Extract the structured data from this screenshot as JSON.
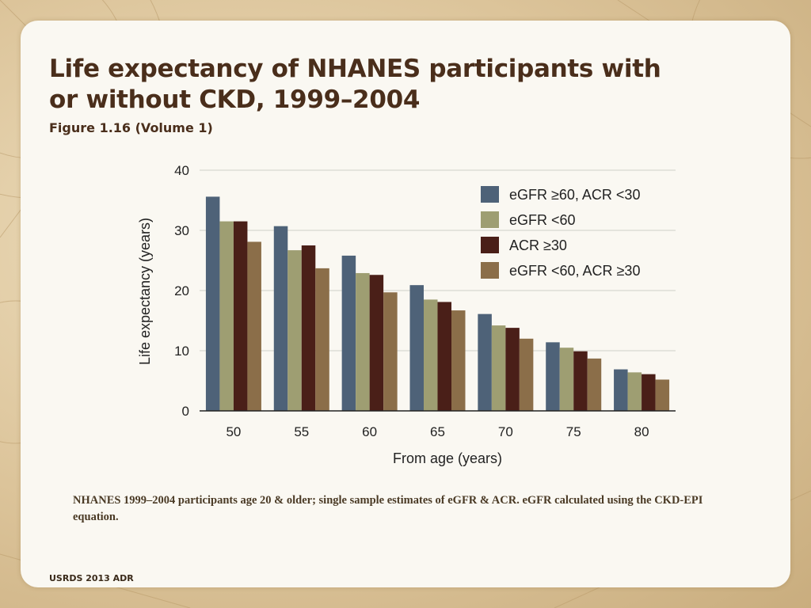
{
  "slide": {
    "title": "Life expectancy of NHANES participants with or without CKD, 1999–2004",
    "subtitle": "Figure 1.16 (Volume 1)",
    "note": "NHANES 1999–2004 participants age 20 & older; single sample estimates of eGFR & ACR. eGFR calculated using the CKD-EPI equation.",
    "footer": "USRDS 2013 ADR"
  },
  "chart_data": {
    "type": "bar",
    "title": "",
    "xlabel": "From age (years)",
    "ylabel": "Life expectancy (years)",
    "ylim": [
      0,
      40
    ],
    "yticks": [
      0,
      10,
      20,
      30,
      40
    ],
    "grid": true,
    "legend_position": "top-right",
    "categories": [
      "50",
      "55",
      "60",
      "65",
      "70",
      "75",
      "80"
    ],
    "series": [
      {
        "name": "eGFR ≥60, ACR <30",
        "color": "#4e6278",
        "values": [
          35.6,
          30.7,
          25.8,
          20.9,
          16.1,
          11.4,
          6.9
        ]
      },
      {
        "name": "eGFR <60",
        "color": "#9e9e72",
        "values": [
          31.5,
          26.7,
          22.9,
          18.5,
          14.2,
          10.5,
          6.4
        ]
      },
      {
        "name": "ACR ≥30",
        "color": "#4a1f18",
        "values": [
          31.5,
          27.5,
          22.6,
          18.1,
          13.8,
          9.9,
          6.1
        ]
      },
      {
        "name": "eGFR <60, ACR ≥30",
        "color": "#8b6e49",
        "values": [
          28.1,
          23.7,
          19.7,
          16.7,
          12.0,
          8.7,
          5.2
        ]
      }
    ]
  }
}
